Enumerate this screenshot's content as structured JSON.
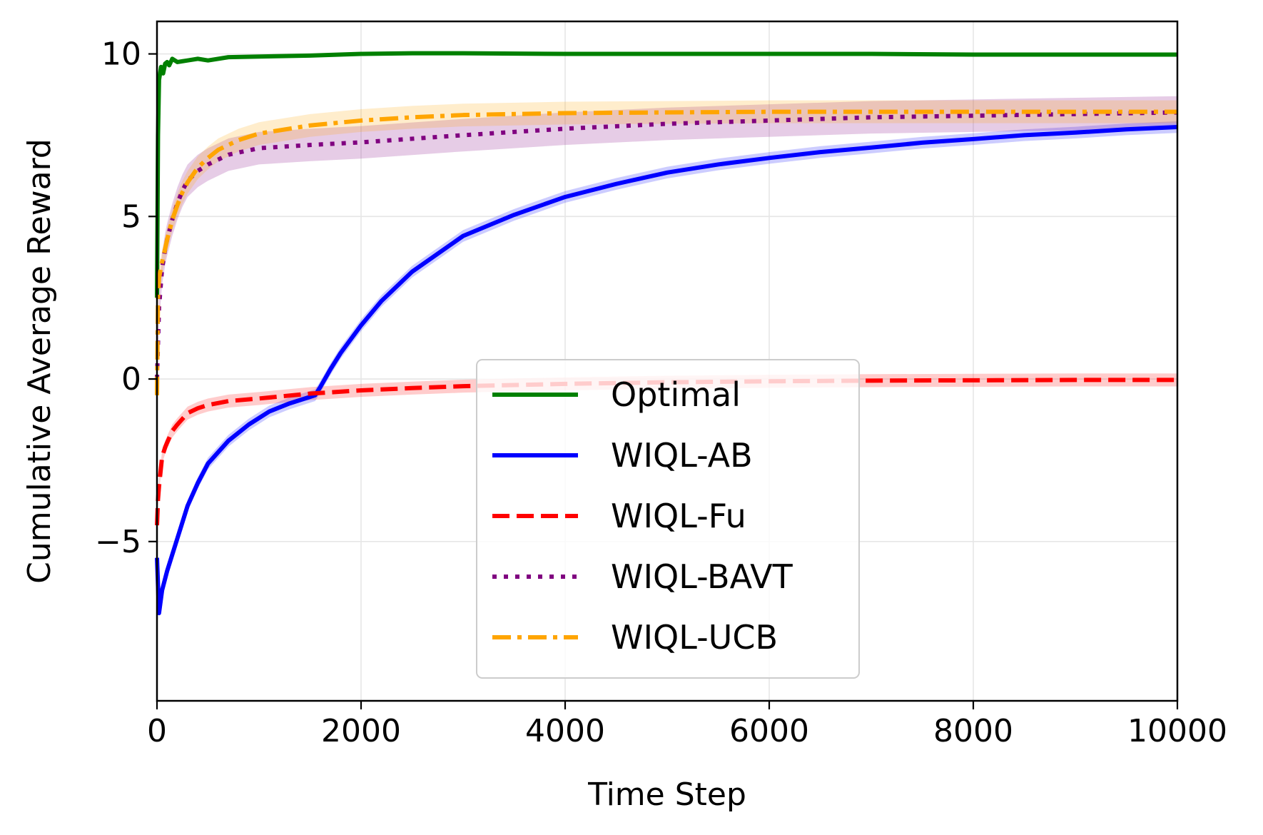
{
  "chart_data": {
    "type": "line",
    "title": "",
    "xlabel": "Time Step",
    "ylabel": "Cumulative Average Reward",
    "xlim": [
      0,
      10000
    ],
    "ylim": [
      -9.9,
      11.0
    ],
    "xticks": [
      0,
      2000,
      4000,
      6000,
      8000,
      10000
    ],
    "xtick_labels": [
      "0",
      "2000",
      "4000",
      "6000",
      "8000",
      "10000"
    ],
    "yticks": [
      -5,
      0,
      5,
      10
    ],
    "ytick_labels": [
      "−5",
      "0",
      "5",
      "10"
    ],
    "grid": true,
    "legend_position": "lower-center",
    "series": [
      {
        "name": "Optimal",
        "color": "#008000",
        "style": "solid",
        "x": [
          0,
          10,
          20,
          40,
          60,
          80,
          100,
          120,
          150,
          200,
          300,
          400,
          500,
          700,
          1000,
          1500,
          2000,
          2500,
          3000,
          4000,
          5000,
          6000,
          7000,
          8000,
          9000,
          10000
        ],
        "y": [
          2.5,
          7.5,
          9.2,
          9.6,
          9.4,
          9.7,
          9.75,
          9.65,
          9.85,
          9.75,
          9.8,
          9.85,
          9.8,
          9.9,
          9.92,
          9.95,
          10.0,
          10.02,
          10.02,
          10.0,
          10.0,
          10.0,
          10.0,
          9.98,
          9.98,
          9.98
        ]
      },
      {
        "name": "WIQL-AB",
        "color": "#0000ff",
        "style": "solid",
        "band": 0.18,
        "x": [
          0,
          20,
          50,
          100,
          200,
          300,
          400,
          500,
          700,
          900,
          1100,
          1300,
          1500,
          1550,
          1600,
          1700,
          1800,
          2000,
          2200,
          2500,
          3000,
          3500,
          4000,
          4500,
          5000,
          5500,
          6000,
          6500,
          7000,
          7500,
          8000,
          8500,
          9000,
          9500,
          10000
        ],
        "y": [
          -5.5,
          -7.2,
          -6.5,
          -5.9,
          -4.9,
          -3.9,
          -3.2,
          -2.6,
          -1.9,
          -1.4,
          -1.0,
          -0.75,
          -0.55,
          -0.5,
          -0.25,
          0.3,
          0.8,
          1.65,
          2.4,
          3.3,
          4.4,
          5.05,
          5.6,
          6.0,
          6.35,
          6.6,
          6.8,
          6.98,
          7.12,
          7.27,
          7.38,
          7.5,
          7.58,
          7.68,
          7.75
        ]
      },
      {
        "name": "WIQL-Fu",
        "color": "#ff0000",
        "style": "dashed",
        "band": 0.2,
        "x": [
          0,
          10,
          20,
          50,
          80,
          100,
          150,
          200,
          300,
          400,
          500,
          700,
          1000,
          1500,
          2000,
          2500,
          3000,
          4000,
          5000,
          6000,
          7000,
          8000,
          9000,
          10000
        ],
        "y": [
          -4.5,
          -3.7,
          -3.3,
          -2.4,
          -2.1,
          -1.95,
          -1.6,
          -1.4,
          -1.05,
          -0.9,
          -0.8,
          -0.68,
          -0.6,
          -0.45,
          -0.35,
          -0.28,
          -0.22,
          -0.15,
          -0.1,
          -0.07,
          -0.05,
          -0.04,
          -0.03,
          -0.03
        ]
      },
      {
        "name": "WIQL-BAVT",
        "color": "#800080",
        "style": "dotted",
        "band": 0.5,
        "x": [
          0,
          20,
          50,
          80,
          100,
          150,
          200,
          250,
          300,
          400,
          500,
          700,
          1000,
          1500,
          2000,
          3000,
          4000,
          5000,
          6000,
          7000,
          8000,
          9000,
          10000
        ],
        "y": [
          0.0,
          2.2,
          3.4,
          4.0,
          4.3,
          4.9,
          5.4,
          5.8,
          6.1,
          6.4,
          6.6,
          6.9,
          7.1,
          7.2,
          7.28,
          7.5,
          7.7,
          7.85,
          7.95,
          8.05,
          8.1,
          8.15,
          8.2
        ]
      },
      {
        "name": "WIQL-UCB",
        "color": "#ffa500",
        "style": "dashdot",
        "band": 0.35,
        "x": [
          0,
          10,
          20,
          50,
          80,
          100,
          150,
          200,
          250,
          300,
          400,
          500,
          600,
          800,
          1000,
          1500,
          2000,
          2500,
          3000,
          4000,
          5000,
          6000,
          7000,
          8000,
          9000,
          10000
        ],
        "y": [
          -0.5,
          2.5,
          3.1,
          3.6,
          4.0,
          4.3,
          4.9,
          5.35,
          5.75,
          6.05,
          6.5,
          6.8,
          7.05,
          7.35,
          7.55,
          7.8,
          7.95,
          8.05,
          8.12,
          8.18,
          8.2,
          8.22,
          8.22,
          8.22,
          8.22,
          8.22
        ]
      }
    ]
  }
}
